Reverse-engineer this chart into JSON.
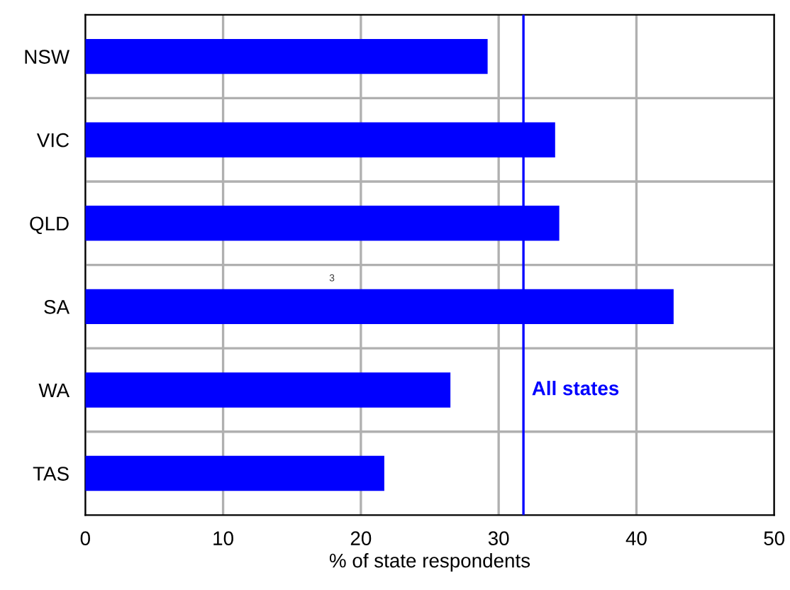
{
  "chart_data": {
    "type": "bar",
    "orientation": "horizontal",
    "xlabel": "% of state respondents",
    "categories": [
      "NSW",
      "VIC",
      "QLD",
      "SA",
      "WA",
      "TAS"
    ],
    "values": [
      29.2,
      34.1,
      34.4,
      42.7,
      26.5,
      21.7
    ],
    "color": "#0000ff",
    "xlim": [
      0,
      50
    ],
    "xticks": [
      0,
      10,
      20,
      30,
      40,
      50
    ],
    "grid": true,
    "ref_lines": [
      {
        "axis": "x",
        "value": 31.8,
        "label": "All states",
        "color": "#0000ff"
      }
    ],
    "annotations": [
      "3"
    ]
  }
}
